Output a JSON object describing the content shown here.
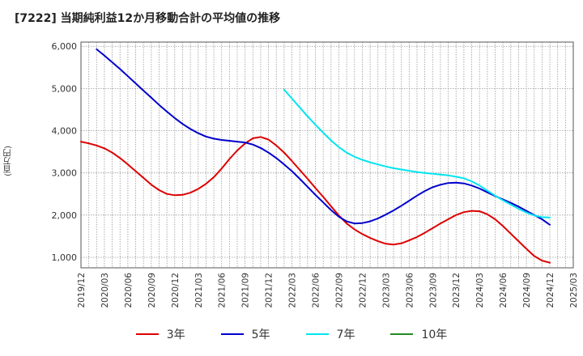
{
  "chart_data": {
    "type": "line",
    "title": "[7222]  当期純利益12か月移動合計の平均値の推移",
    "ylabel": "(百万円)",
    "xlabel": "",
    "ylim": [
      750,
      6100
    ],
    "yticks": [
      1000,
      2000,
      3000,
      4000,
      5000,
      6000
    ],
    "ytick_labels": [
      "1,000",
      "2,000",
      "3,000",
      "4,000",
      "5,000",
      "6,000"
    ],
    "xlim": [
      "2019-12",
      "2025-03"
    ],
    "xtick_labels": [
      "2019/12",
      "2020/03",
      "2020/06",
      "2020/09",
      "2020/12",
      "2021/03",
      "2021/06",
      "2021/09",
      "2021/12",
      "2022/03",
      "2022/06",
      "2022/09",
      "2022/12",
      "2023/03",
      "2023/06",
      "2023/09",
      "2023/12",
      "2024/03",
      "2024/06",
      "2024/09",
      "2024/12",
      "2025/03"
    ],
    "grid": true,
    "legend_position": "bottom",
    "series": [
      {
        "name": "3年",
        "color": "#dd0000",
        "x": [
          "2019-12",
          "2020-01",
          "2020-02",
          "2020-03",
          "2020-04",
          "2020-05",
          "2020-06",
          "2020-07",
          "2020-08",
          "2020-09",
          "2020-10",
          "2020-11",
          "2020-12",
          "2021-01",
          "2021-02",
          "2021-03",
          "2021-04",
          "2021-05",
          "2021-06",
          "2021-07",
          "2021-08",
          "2021-09",
          "2021-10",
          "2021-11",
          "2021-12",
          "2022-01",
          "2022-02",
          "2022-03",
          "2022-04",
          "2022-05",
          "2022-06",
          "2022-07",
          "2022-08",
          "2022-09",
          "2022-10",
          "2022-11",
          "2022-12",
          "2023-01",
          "2023-02",
          "2023-03",
          "2023-04",
          "2023-05",
          "2023-06",
          "2023-07",
          "2023-08",
          "2023-09",
          "2023-10",
          "2023-11",
          "2023-12",
          "2024-01",
          "2024-02",
          "2024-03",
          "2024-04",
          "2024-05",
          "2024-06",
          "2024-07",
          "2024-08",
          "2024-09",
          "2024-10",
          "2024-11",
          "2024-12"
        ],
        "y": [
          3740,
          3700,
          3650,
          3580,
          3480,
          3350,
          3200,
          3040,
          2880,
          2720,
          2590,
          2500,
          2470,
          2480,
          2530,
          2620,
          2740,
          2900,
          3100,
          3330,
          3530,
          3700,
          3820,
          3850,
          3790,
          3650,
          3480,
          3280,
          3070,
          2860,
          2640,
          2430,
          2210,
          1990,
          1800,
          1660,
          1550,
          1460,
          1380,
          1320,
          1300,
          1330,
          1400,
          1480,
          1580,
          1690,
          1800,
          1900,
          2000,
          2070,
          2100,
          2090,
          2020,
          1900,
          1740,
          1560,
          1380,
          1200,
          1030,
          920,
          870
        ]
      },
      {
        "name": "5年",
        "color": "#0000cc",
        "x": [
          "2020-02",
          "2020-03",
          "2020-04",
          "2020-05",
          "2020-06",
          "2020-07",
          "2020-08",
          "2020-09",
          "2020-10",
          "2020-11",
          "2020-12",
          "2021-01",
          "2021-02",
          "2021-03",
          "2021-04",
          "2021-05",
          "2021-06",
          "2021-07",
          "2021-08",
          "2021-09",
          "2021-10",
          "2021-11",
          "2021-12",
          "2022-01",
          "2022-02",
          "2022-03",
          "2022-04",
          "2022-05",
          "2022-06",
          "2022-07",
          "2022-08",
          "2022-09",
          "2022-10",
          "2022-11",
          "2022-12",
          "2023-01",
          "2023-02",
          "2023-03",
          "2023-04",
          "2023-05",
          "2023-06",
          "2023-07",
          "2023-08",
          "2023-09",
          "2023-10",
          "2023-11",
          "2023-12",
          "2024-01",
          "2024-02",
          "2024-03",
          "2024-04",
          "2024-05",
          "2024-06",
          "2024-07",
          "2024-08",
          "2024-09",
          "2024-10",
          "2024-11",
          "2024-12"
        ],
        "y": [
          5930,
          5780,
          5620,
          5460,
          5290,
          5120,
          4950,
          4780,
          4610,
          4450,
          4300,
          4160,
          4040,
          3940,
          3860,
          3810,
          3780,
          3760,
          3740,
          3720,
          3670,
          3590,
          3480,
          3350,
          3200,
          3040,
          2860,
          2670,
          2480,
          2300,
          2120,
          1960,
          1850,
          1800,
          1810,
          1850,
          1920,
          2010,
          2110,
          2220,
          2340,
          2460,
          2570,
          2660,
          2720,
          2760,
          2770,
          2750,
          2700,
          2630,
          2540,
          2450,
          2370,
          2290,
          2200,
          2100,
          2000,
          1900,
          1770
        ]
      },
      {
        "name": "7年",
        "color": "#00e5ee",
        "x": [
          "2022-02",
          "2022-03",
          "2022-04",
          "2022-05",
          "2022-06",
          "2022-07",
          "2022-08",
          "2022-09",
          "2022-10",
          "2022-11",
          "2022-12",
          "2023-01",
          "2023-02",
          "2023-03",
          "2023-04",
          "2023-05",
          "2023-06",
          "2023-07",
          "2023-08",
          "2023-09",
          "2023-10",
          "2023-11",
          "2023-12",
          "2024-01",
          "2024-02",
          "2024-03",
          "2024-04",
          "2024-05",
          "2024-06",
          "2024-07",
          "2024-08",
          "2024-09",
          "2024-10",
          "2024-11",
          "2024-12"
        ],
        "y": [
          4970,
          4760,
          4550,
          4340,
          4140,
          3950,
          3770,
          3610,
          3480,
          3380,
          3310,
          3250,
          3200,
          3150,
          3110,
          3080,
          3050,
          3020,
          3000,
          2980,
          2960,
          2940,
          2910,
          2870,
          2800,
          2700,
          2580,
          2460,
          2350,
          2250,
          2150,
          2060,
          1990,
          1950,
          1940
        ]
      },
      {
        "name": "10年",
        "color": "#228b22",
        "x": [],
        "y": []
      }
    ]
  }
}
